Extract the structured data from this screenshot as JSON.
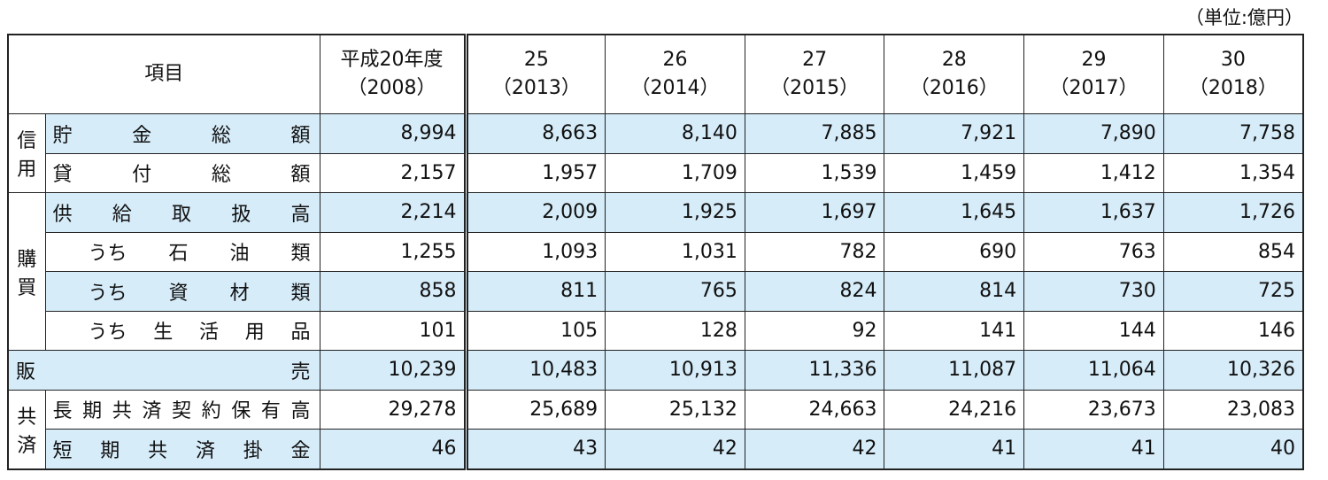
{
  "unit": "（単位:億円）",
  "table": {
    "header": {
      "item": "項目",
      "columns": [
        {
          "era": "平成20年度",
          "year": "（2008）"
        },
        {
          "era": "25",
          "year": "（2013）"
        },
        {
          "era": "26",
          "year": "（2014）"
        },
        {
          "era": "27",
          "year": "（2015）"
        },
        {
          "era": "28",
          "year": "（2016）"
        },
        {
          "era": "29",
          "year": "（2017）"
        },
        {
          "era": "30",
          "year": "（2018）"
        }
      ]
    },
    "groups": [
      {
        "label": "信用",
        "rows": [
          {
            "label": "貯金総額",
            "values": [
              "8,994",
              "8,663",
              "8,140",
              "7,885",
              "7,921",
              "7,890",
              "7,758"
            ]
          },
          {
            "label": "貸付総額",
            "values": [
              "2,157",
              "1,957",
              "1,709",
              "1,539",
              "1,459",
              "1,412",
              "1,354"
            ]
          }
        ]
      },
      {
        "label": "購買",
        "rows": [
          {
            "label": "供給取扱高",
            "values": [
              "2,214",
              "2,009",
              "1,925",
              "1,697",
              "1,645",
              "1,637",
              "1,726"
            ]
          },
          {
            "label": "うち石油類",
            "values": [
              "1,255",
              "1,093",
              "1,031",
              "782",
              "690",
              "763",
              "854"
            ]
          },
          {
            "label": "うち資材類",
            "values": [
              "858",
              "811",
              "765",
              "824",
              "814",
              "730",
              "725"
            ]
          },
          {
            "label": "うち生活用品",
            "values": [
              "101",
              "105",
              "128",
              "92",
              "141",
              "144",
              "146"
            ]
          }
        ]
      },
      {
        "rows": [
          {
            "label": "販売",
            "values": [
              "10,239",
              "10,483",
              "10,913",
              "11,336",
              "11,087",
              "11,064",
              "10,326"
            ]
          }
        ]
      },
      {
        "label": "共済",
        "rows": [
          {
            "label": "長期共済契約保有高",
            "values": [
              "29,278",
              "25,689",
              "25,132",
              "24,663",
              "24,216",
              "23,673",
              "23,083"
            ]
          },
          {
            "label": "短期共済掛金",
            "values": [
              "46",
              "43",
              "42",
              "42",
              "41",
              "41",
              "40"
            ]
          }
        ]
      }
    ]
  }
}
